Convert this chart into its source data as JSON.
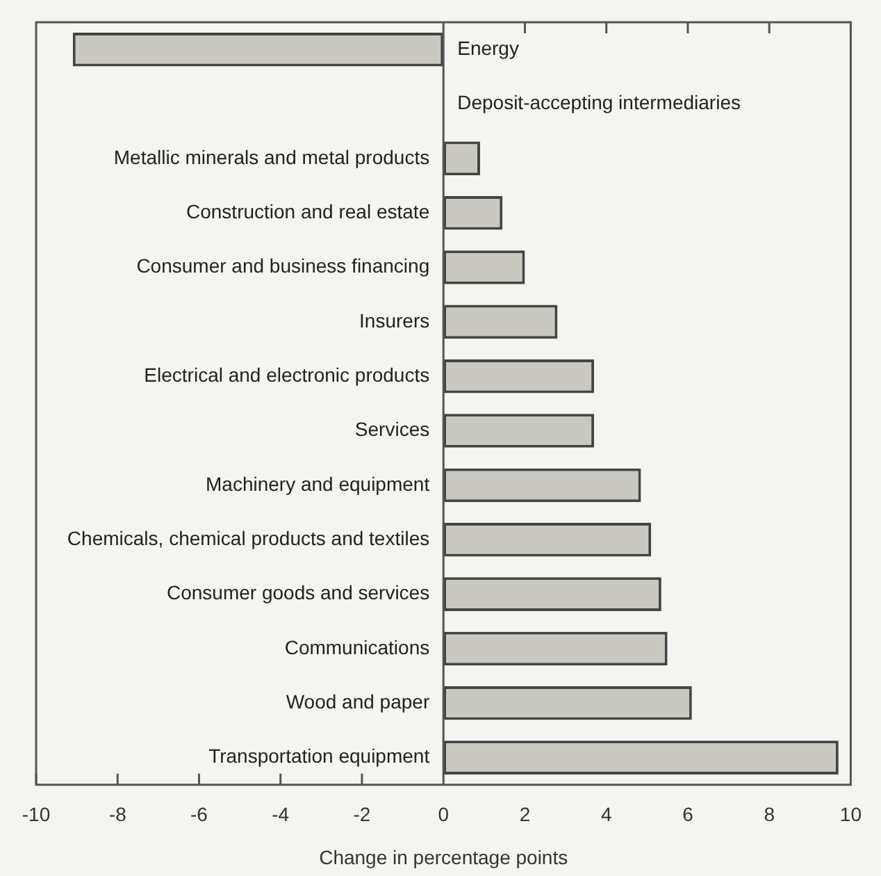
{
  "chart_data": {
    "type": "bar",
    "orientation": "horizontal",
    "xlabel": "Change in percentage points",
    "categories": [
      "Energy",
      "Deposit-accepting intermediaries",
      "Metallic minerals and metal products",
      "Construction and real estate",
      "Consumer and business financing",
      "Insurers",
      "Electrical and electronic products",
      "Services",
      "Machinery and equipment",
      "Chemicals, chemical products and textiles",
      "Consumer goods and services",
      "Communications",
      "Wood and paper",
      "Transportation equipment"
    ],
    "values": [
      -9.1,
      0,
      0.9,
      1.45,
      2.0,
      2.8,
      3.7,
      3.7,
      4.85,
      5.1,
      5.35,
      5.5,
      6.1,
      9.7
    ],
    "color": "#c9c9c1",
    "xlim": [
      -10,
      10
    ],
    "xticks": [
      -10,
      -8,
      -6,
      -4,
      -2,
      0,
      2,
      4,
      6,
      8,
      10
    ],
    "grid": false,
    "legend": false
  }
}
